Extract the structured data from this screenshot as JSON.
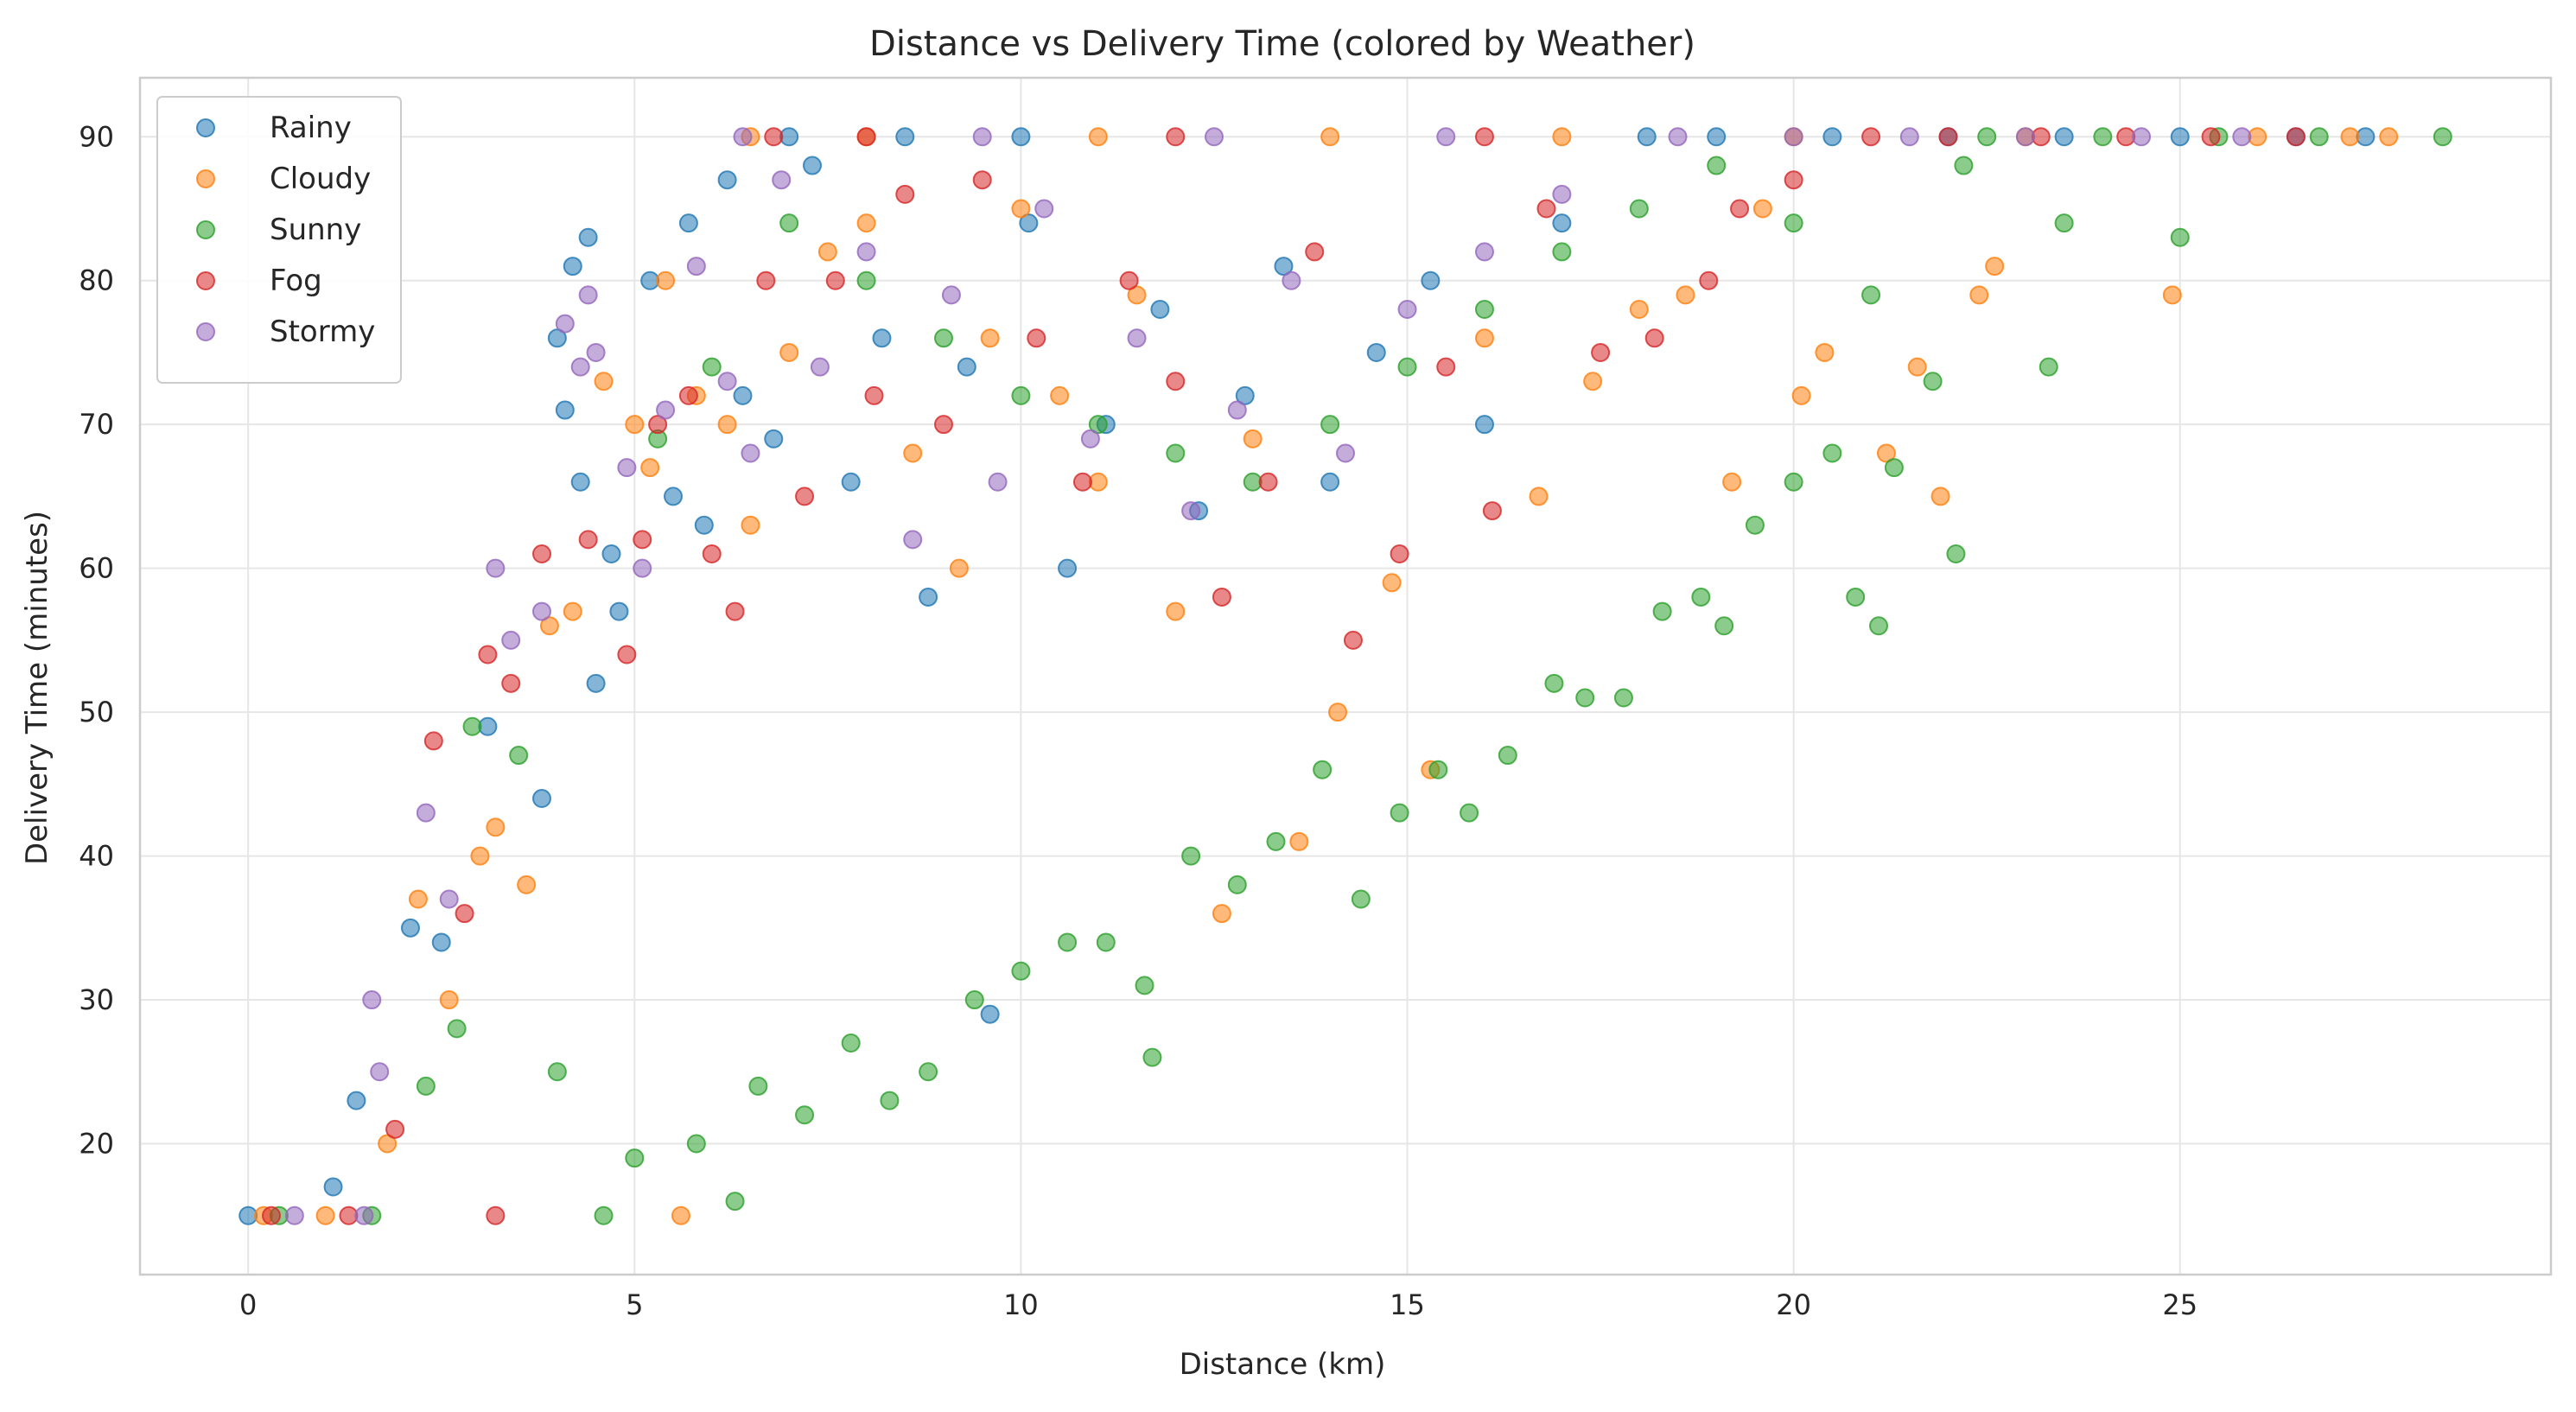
{
  "chart_data": {
    "type": "scatter",
    "title": "Distance vs Delivery Time (colored by Weather)",
    "xlabel": "Distance (km)",
    "ylabel": "Delivery Time (minutes)",
    "xlim": [
      -1.4,
      29.8
    ],
    "ylim": [
      10.9,
      94.1
    ],
    "xticks": [
      0,
      5,
      10,
      15,
      20,
      25
    ],
    "yticks": [
      20,
      30,
      40,
      50,
      60,
      70,
      80,
      90
    ],
    "grid": true,
    "legend_position": "top-left",
    "marker_opacity": 0.55,
    "observed_ranges": {
      "delivery_time_floor": 15,
      "delivery_time_cap": 90,
      "distance_max": 28.4
    },
    "series": [
      {
        "name": "Rainy",
        "color": "#1f77b4",
        "points": [
          [
            0,
            15
          ],
          [
            1.1,
            17
          ],
          [
            1.4,
            23
          ],
          [
            2.1,
            35
          ],
          [
            2.5,
            34
          ],
          [
            3.1,
            49
          ],
          [
            3.8,
            44
          ],
          [
            4.0,
            76
          ],
          [
            4.1,
            71
          ],
          [
            4.2,
            81
          ],
          [
            4.3,
            66
          ],
          [
            4.4,
            83
          ],
          [
            4.5,
            52
          ],
          [
            4.7,
            61
          ],
          [
            4.8,
            57
          ],
          [
            5.2,
            80
          ],
          [
            5.5,
            65
          ],
          [
            5.7,
            84
          ],
          [
            5.9,
            63
          ],
          [
            6.2,
            87
          ],
          [
            6.4,
            72
          ],
          [
            6.8,
            69
          ],
          [
            7.3,
            88
          ],
          [
            7.8,
            66
          ],
          [
            8.2,
            76
          ],
          [
            8.8,
            58
          ],
          [
            9.3,
            74
          ],
          [
            9.6,
            29
          ],
          [
            10.1,
            84
          ],
          [
            10.6,
            60
          ],
          [
            11.1,
            70
          ],
          [
            11.8,
            78
          ],
          [
            12.3,
            64
          ],
          [
            12.9,
            72
          ],
          [
            13.4,
            81
          ],
          [
            14.0,
            66
          ],
          [
            14.6,
            75
          ],
          [
            15.3,
            80
          ],
          [
            16.0,
            70
          ],
          [
            17.0,
            84
          ],
          [
            18.1,
            90
          ],
          [
            19.0,
            90
          ],
          [
            20.5,
            90
          ],
          [
            22.0,
            90
          ],
          [
            23.5,
            90
          ],
          [
            25.0,
            90
          ],
          [
            26.5,
            90
          ],
          [
            27.4,
            90
          ],
          [
            7.0,
            90
          ],
          [
            8.5,
            90
          ],
          [
            10.0,
            90
          ]
        ]
      },
      {
        "name": "Cloudy",
        "color": "#ff7f0e",
        "points": [
          [
            0.2,
            15
          ],
          [
            1.0,
            15
          ],
          [
            1.8,
            20
          ],
          [
            2.2,
            37
          ],
          [
            2.6,
            30
          ],
          [
            3.0,
            40
          ],
          [
            3.2,
            42
          ],
          [
            3.6,
            38
          ],
          [
            3.9,
            56
          ],
          [
            4.2,
            57
          ],
          [
            4.6,
            73
          ],
          [
            5.0,
            70
          ],
          [
            5.2,
            67
          ],
          [
            5.4,
            80
          ],
          [
            5.8,
            72
          ],
          [
            5.6,
            15
          ],
          [
            6.2,
            70
          ],
          [
            6.5,
            63
          ],
          [
            7.0,
            75
          ],
          [
            7.5,
            82
          ],
          [
            8.0,
            84
          ],
          [
            8.6,
            68
          ],
          [
            9.2,
            60
          ],
          [
            9.6,
            76
          ],
          [
            10.0,
            85
          ],
          [
            10.5,
            72
          ],
          [
            11.0,
            66
          ],
          [
            11.5,
            79
          ],
          [
            12.0,
            57
          ],
          [
            12.6,
            36
          ],
          [
            13.0,
            69
          ],
          [
            13.6,
            41
          ],
          [
            14.1,
            50
          ],
          [
            14.8,
            59
          ],
          [
            15.3,
            46
          ],
          [
            16.0,
            76
          ],
          [
            16.7,
            65
          ],
          [
            17.4,
            73
          ],
          [
            18.0,
            78
          ],
          [
            18.6,
            79
          ],
          [
            19.2,
            66
          ],
          [
            19.6,
            85
          ],
          [
            20.1,
            72
          ],
          [
            20.4,
            75
          ],
          [
            21.2,
            68
          ],
          [
            21.6,
            74
          ],
          [
            21.9,
            65
          ],
          [
            22.6,
            81
          ],
          [
            22.4,
            79
          ],
          [
            24.9,
            79
          ],
          [
            27.2,
            90
          ],
          [
            27.7,
            90
          ],
          [
            26.0,
            90
          ],
          [
            23.0,
            90
          ],
          [
            20.0,
            90
          ],
          [
            17.0,
            90
          ],
          [
            14.0,
            90
          ],
          [
            11.0,
            90
          ],
          [
            8.0,
            90
          ],
          [
            6.5,
            90
          ]
        ]
      },
      {
        "name": "Sunny",
        "color": "#2ca02c",
        "points": [
          [
            0.4,
            15
          ],
          [
            1.6,
            15
          ],
          [
            2.3,
            24
          ],
          [
            2.7,
            28
          ],
          [
            2.9,
            49
          ],
          [
            3.5,
            47
          ],
          [
            4.0,
            25
          ],
          [
            4.6,
            15
          ],
          [
            5.0,
            19
          ],
          [
            5.3,
            69
          ],
          [
            5.8,
            20
          ],
          [
            6.3,
            16
          ],
          [
            6.6,
            24
          ],
          [
            7.2,
            22
          ],
          [
            7.8,
            27
          ],
          [
            8.3,
            23
          ],
          [
            8.8,
            25
          ],
          [
            9.4,
            30
          ],
          [
            10.0,
            32
          ],
          [
            10.6,
            34
          ],
          [
            11.1,
            34
          ],
          [
            11.6,
            31
          ],
          [
            11.7,
            26
          ],
          [
            12.2,
            40
          ],
          [
            12.8,
            38
          ],
          [
            13.3,
            41
          ],
          [
            13.9,
            46
          ],
          [
            14.4,
            37
          ],
          [
            14.9,
            43
          ],
          [
            15.4,
            46
          ],
          [
            15.8,
            43
          ],
          [
            16.3,
            47
          ],
          [
            16.9,
            52
          ],
          [
            17.3,
            51
          ],
          [
            17.8,
            51
          ],
          [
            18.3,
            57
          ],
          [
            18.8,
            58
          ],
          [
            19.1,
            56
          ],
          [
            19.5,
            63
          ],
          [
            20.0,
            66
          ],
          [
            20.5,
            68
          ],
          [
            20.8,
            58
          ],
          [
            21.1,
            56
          ],
          [
            21.3,
            67
          ],
          [
            21.8,
            73
          ],
          [
            22.1,
            61
          ],
          [
            22.2,
            88
          ],
          [
            23.3,
            74
          ],
          [
            23.5,
            84
          ],
          [
            25.0,
            83
          ],
          [
            6.0,
            74
          ],
          [
            7.0,
            84
          ],
          [
            8.0,
            80
          ],
          [
            9.0,
            76
          ],
          [
            10.0,
            72
          ],
          [
            11.0,
            70
          ],
          [
            12.0,
            68
          ],
          [
            13.0,
            66
          ],
          [
            14.0,
            70
          ],
          [
            15.0,
            74
          ],
          [
            16.0,
            78
          ],
          [
            17.0,
            82
          ],
          [
            18.0,
            85
          ],
          [
            19.0,
            88
          ],
          [
            20.0,
            84
          ],
          [
            21.0,
            79
          ],
          [
            28.4,
            90
          ],
          [
            26.8,
            90
          ],
          [
            25.5,
            90
          ],
          [
            24.0,
            90
          ],
          [
            22.5,
            90
          ]
        ]
      },
      {
        "name": "Fog",
        "color": "#d62728",
        "points": [
          [
            0.3,
            15
          ],
          [
            1.3,
            15
          ],
          [
            1.9,
            21
          ],
          [
            2.4,
            48
          ],
          [
            2.8,
            36
          ],
          [
            3.1,
            54
          ],
          [
            3.4,
            52
          ],
          [
            3.8,
            61
          ],
          [
            3.2,
            15
          ],
          [
            4.4,
            62
          ],
          [
            4.9,
            54
          ],
          [
            5.1,
            62
          ],
          [
            5.3,
            70
          ],
          [
            5.7,
            72
          ],
          [
            6.0,
            61
          ],
          [
            6.3,
            57
          ],
          [
            6.7,
            80
          ],
          [
            7.2,
            65
          ],
          [
            7.6,
            80
          ],
          [
            8.1,
            72
          ],
          [
            8.5,
            86
          ],
          [
            9.0,
            70
          ],
          [
            9.5,
            87
          ],
          [
            10.2,
            76
          ],
          [
            10.8,
            66
          ],
          [
            11.4,
            80
          ],
          [
            12.0,
            73
          ],
          [
            12.6,
            58
          ],
          [
            13.2,
            66
          ],
          [
            13.8,
            82
          ],
          [
            14.3,
            55
          ],
          [
            14.9,
            61
          ],
          [
            15.5,
            74
          ],
          [
            16.1,
            64
          ],
          [
            16.8,
            85
          ],
          [
            17.5,
            75
          ],
          [
            18.2,
            76
          ],
          [
            18.9,
            80
          ],
          [
            19.3,
            85
          ],
          [
            20.0,
            87
          ],
          [
            21.0,
            90
          ],
          [
            22.0,
            90
          ],
          [
            23.2,
            90
          ],
          [
            24.3,
            90
          ],
          [
            25.4,
            90
          ],
          [
            26.5,
            90
          ],
          [
            16.0,
            90
          ],
          [
            12.0,
            90
          ],
          [
            8.0,
            90
          ],
          [
            6.8,
            90
          ]
        ]
      },
      {
        "name": "Stormy",
        "color": "#9467bd",
        "points": [
          [
            0.6,
            15
          ],
          [
            1.5,
            15
          ],
          [
            1.7,
            25
          ],
          [
            1.6,
            30
          ],
          [
            2.3,
            43
          ],
          [
            2.6,
            37
          ],
          [
            3.2,
            60
          ],
          [
            3.4,
            55
          ],
          [
            3.8,
            57
          ],
          [
            4.1,
            77
          ],
          [
            4.4,
            79
          ],
          [
            4.5,
            75
          ],
          [
            4.3,
            74
          ],
          [
            4.9,
            67
          ],
          [
            5.1,
            60
          ],
          [
            5.4,
            71
          ],
          [
            5.8,
            81
          ],
          [
            6.2,
            73
          ],
          [
            6.5,
            68
          ],
          [
            6.9,
            87
          ],
          [
            7.4,
            74
          ],
          [
            8.0,
            82
          ],
          [
            8.6,
            62
          ],
          [
            9.1,
            79
          ],
          [
            9.7,
            66
          ],
          [
            10.3,
            85
          ],
          [
            10.9,
            69
          ],
          [
            11.5,
            76
          ],
          [
            12.2,
            64
          ],
          [
            12.8,
            71
          ],
          [
            13.5,
            80
          ],
          [
            14.2,
            68
          ],
          [
            15.0,
            78
          ],
          [
            16.0,
            82
          ],
          [
            17.0,
            86
          ],
          [
            18.5,
            90
          ],
          [
            20.0,
            90
          ],
          [
            21.5,
            90
          ],
          [
            23.0,
            90
          ],
          [
            24.5,
            90
          ],
          [
            25.8,
            90
          ],
          [
            6.4,
            90
          ],
          [
            9.5,
            90
          ],
          [
            12.5,
            90
          ],
          [
            15.5,
            90
          ]
        ]
      }
    ]
  }
}
